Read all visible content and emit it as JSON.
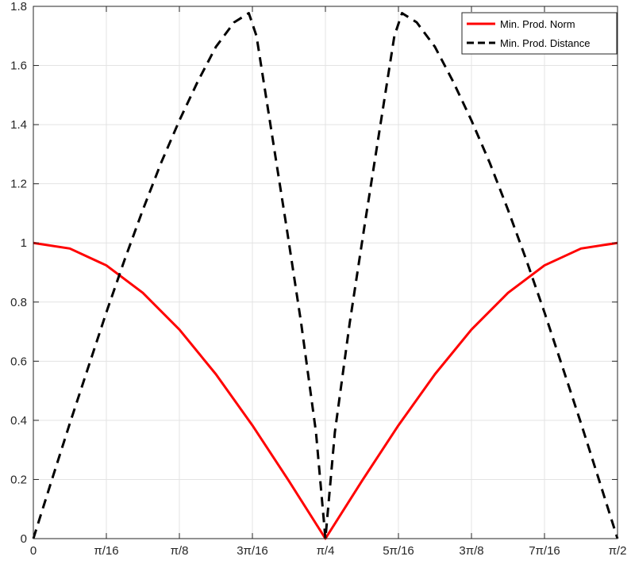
{
  "chart_data": {
    "type": "line",
    "title": "",
    "xlabel": "",
    "ylabel": "",
    "xlim": [
      0,
      1.5707963
    ],
    "ylim": [
      0,
      1.8
    ],
    "grid": true,
    "legend_placement": "top-right",
    "x_ticks": [
      {
        "value": 0,
        "label": "0"
      },
      {
        "value": 0.1963495,
        "label": "π/16"
      },
      {
        "value": 0.3926991,
        "label": "π/8"
      },
      {
        "value": 0.5890486,
        "label": "3π/16"
      },
      {
        "value": 0.7853982,
        "label": "π/4"
      },
      {
        "value": 0.9817477,
        "label": "5π/16"
      },
      {
        "value": 1.1780972,
        "label": "3π/8"
      },
      {
        "value": 1.3744468,
        "label": "7π/16"
      },
      {
        "value": 1.5707963,
        "label": "π/2"
      }
    ],
    "y_ticks": [
      {
        "value": 0,
        "label": "0"
      },
      {
        "value": 0.2,
        "label": "0.2"
      },
      {
        "value": 0.4,
        "label": "0.4"
      },
      {
        "value": 0.6,
        "label": "0.6"
      },
      {
        "value": 0.8,
        "label": "0.8"
      },
      {
        "value": 1,
        "label": "1"
      },
      {
        "value": 1.2,
        "label": "1.2"
      },
      {
        "value": 1.4,
        "label": "1.4"
      },
      {
        "value": 1.6,
        "label": "1.6"
      },
      {
        "value": 1.8,
        "label": "1.8"
      }
    ],
    "series": [
      {
        "name": "Min. Prod. Norm",
        "color": "#ff0000",
        "dash": "solid",
        "x": [
          0,
          0.0982,
          0.1963,
          0.2945,
          0.3927,
          0.4909,
          0.589,
          0.6872,
          0.7854,
          0.8836,
          0.9817,
          1.0799,
          1.1781,
          1.2763,
          1.3744,
          1.4726,
          1.5708
        ],
        "y": [
          1.0,
          0.981,
          0.924,
          0.831,
          0.707,
          0.556,
          0.383,
          0.195,
          0.0,
          0.195,
          0.383,
          0.556,
          0.707,
          0.831,
          0.924,
          0.981,
          1.0
        ]
      },
      {
        "name": "Min. Prod. Distance",
        "color": "#000000",
        "dash": "dashed",
        "x": [
          0,
          0.0491,
          0.0982,
          0.1473,
          0.1963,
          0.2454,
          0.2945,
          0.3436,
          0.3927,
          0.4418,
          0.4909,
          0.54,
          0.5794,
          0.6,
          0.64,
          0.68,
          0.72,
          0.76,
          0.7854,
          0.8108,
          0.8508,
          0.8908,
          0.9308,
          0.9708,
          0.9914,
          1.0308,
          1.0799,
          1.129,
          1.1781,
          1.2272,
          1.2763,
          1.3254,
          1.3744,
          1.4235,
          1.4726,
          1.5217,
          1.5708
        ],
        "y": [
          0.0,
          0.196,
          0.39,
          0.578,
          0.765,
          0.943,
          1.112,
          1.271,
          1.414,
          1.545,
          1.663,
          1.746,
          1.777,
          1.7,
          1.38,
          1.06,
          0.73,
          0.36,
          0.0,
          0.36,
          0.73,
          1.06,
          1.38,
          1.7,
          1.777,
          1.746,
          1.663,
          1.545,
          1.414,
          1.271,
          1.112,
          0.943,
          0.765,
          0.578,
          0.39,
          0.196,
          0.0
        ]
      }
    ]
  }
}
